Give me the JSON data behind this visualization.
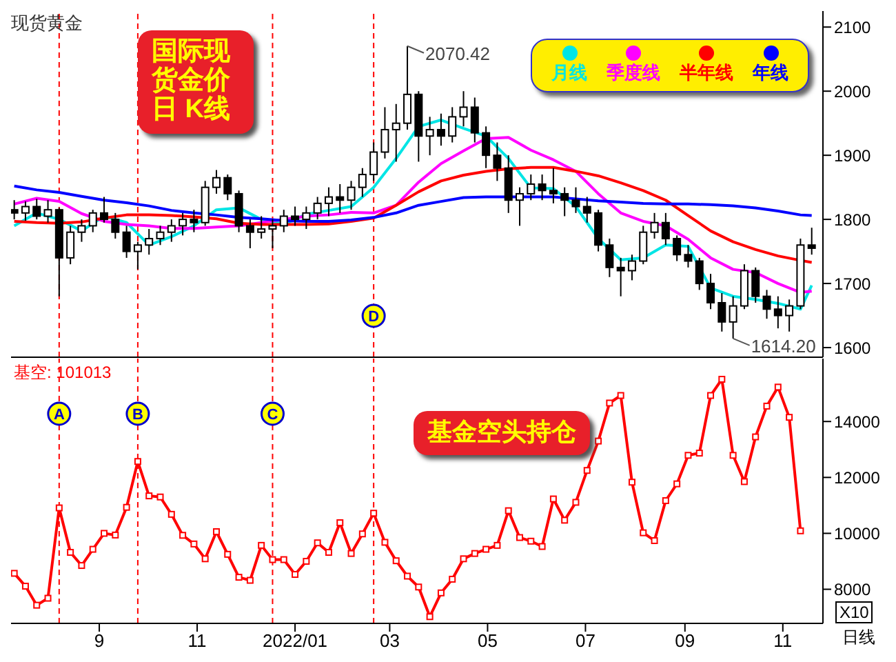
{
  "chart_data": [
    {
      "type": "candlestick",
      "title": "现货黄金",
      "color": "#000000",
      "x": [
        "2021-07-10",
        "2021-07-17",
        "2021-07-24",
        "2021-07-31",
        "2021-08-07",
        "2021-08-14",
        "2021-08-21",
        "2021-08-28",
        "2021-09-04",
        "2021-09-11",
        "2021-09-18",
        "2021-09-25",
        "2021-10-02",
        "2021-10-09",
        "2021-10-16",
        "2021-10-23",
        "2021-10-30",
        "2021-11-06",
        "2021-11-13",
        "2021-11-20",
        "2021-11-27",
        "2021-12-04",
        "2021-12-11",
        "2021-12-18",
        "2021-12-25",
        "2022-01-01",
        "2022-01-08",
        "2022-01-15",
        "2022-01-22",
        "2022-01-29",
        "2022-02-05",
        "2022-02-12",
        "2022-02-19",
        "2022-02-26",
        "2022-03-05",
        "2022-03-12",
        "2022-03-19",
        "2022-03-26",
        "2022-04-02",
        "2022-04-09",
        "2022-04-16",
        "2022-04-23",
        "2022-04-30",
        "2022-05-07",
        "2022-05-14",
        "2022-05-21",
        "2022-05-28",
        "2022-06-04",
        "2022-06-11",
        "2022-06-18",
        "2022-06-25",
        "2022-07-02",
        "2022-07-09",
        "2022-07-16",
        "2022-07-23",
        "2022-07-30",
        "2022-08-06",
        "2022-08-13",
        "2022-08-20",
        "2022-08-27",
        "2022-09-03",
        "2022-09-10",
        "2022-09-17",
        "2022-09-24",
        "2022-10-01",
        "2022-10-08",
        "2022-10-15",
        "2022-10-22",
        "2022-10-29",
        "2022-11-05",
        "2022-11-12",
        "2022-11-19"
      ],
      "ohlc": [
        [
          1815,
          1830,
          1800,
          1810
        ],
        [
          1810,
          1828,
          1798,
          1820
        ],
        [
          1820,
          1832,
          1800,
          1805
        ],
        [
          1805,
          1830,
          1795,
          1815
        ],
        [
          1815,
          1818,
          1680,
          1740
        ],
        [
          1740,
          1790,
          1730,
          1780
        ],
        [
          1780,
          1800,
          1765,
          1790
        ],
        [
          1790,
          1815,
          1780,
          1810
        ],
        [
          1810,
          1835,
          1795,
          1800
        ],
        [
          1800,
          1810,
          1770,
          1780
        ],
        [
          1780,
          1790,
          1740,
          1750
        ],
        [
          1750,
          1765,
          1722,
          1760
        ],
        [
          1760,
          1785,
          1745,
          1770
        ],
        [
          1770,
          1790,
          1760,
          1780
        ],
        [
          1780,
          1800,
          1765,
          1790
        ],
        [
          1790,
          1810,
          1775,
          1800
        ],
        [
          1800,
          1815,
          1780,
          1795
        ],
        [
          1795,
          1860,
          1790,
          1850
        ],
        [
          1850,
          1877,
          1840,
          1865
        ],
        [
          1865,
          1870,
          1830,
          1840
        ],
        [
          1840,
          1845,
          1780,
          1790
        ],
        [
          1790,
          1800,
          1755,
          1780
        ],
        [
          1780,
          1805,
          1770,
          1785
        ],
        [
          1785,
          1800,
          1755,
          1790
        ],
        [
          1790,
          1815,
          1780,
          1805
        ],
        [
          1805,
          1820,
          1790,
          1800
        ],
        [
          1800,
          1820,
          1785,
          1810
        ],
        [
          1810,
          1835,
          1800,
          1825
        ],
        [
          1825,
          1850,
          1805,
          1835
        ],
        [
          1835,
          1855,
          1810,
          1830
        ],
        [
          1830,
          1860,
          1815,
          1850
        ],
        [
          1850,
          1880,
          1835,
          1870
        ],
        [
          1870,
          1920,
          1860,
          1905
        ],
        [
          1905,
          1975,
          1895,
          1940
        ],
        [
          1940,
          1980,
          1890,
          1950
        ],
        [
          1950,
          2070.42,
          1940,
          1995
        ],
        [
          1995,
          2000,
          1890,
          1930
        ],
        [
          1930,
          1960,
          1900,
          1940
        ],
        [
          1940,
          1965,
          1915,
          1930
        ],
        [
          1930,
          1975,
          1920,
          1960
        ],
        [
          1960,
          2000,
          1945,
          1975
        ],
        [
          1975,
          1990,
          1920,
          1935
        ],
        [
          1935,
          1945,
          1880,
          1900
        ],
        [
          1900,
          1920,
          1860,
          1880
        ],
        [
          1880,
          1900,
          1810,
          1830
        ],
        [
          1830,
          1850,
          1790,
          1840
        ],
        [
          1840,
          1870,
          1830,
          1855
        ],
        [
          1855,
          1870,
          1830,
          1845
        ],
        [
          1845,
          1880,
          1825,
          1840
        ],
        [
          1840,
          1850,
          1805,
          1830
        ],
        [
          1830,
          1850,
          1810,
          1820
        ],
        [
          1820,
          1835,
          1795,
          1810
        ],
        [
          1810,
          1815,
          1750,
          1760
        ],
        [
          1760,
          1770,
          1710,
          1725
        ],
        [
          1725,
          1740,
          1680,
          1720
        ],
        [
          1720,
          1745,
          1705,
          1735
        ],
        [
          1735,
          1790,
          1730,
          1780
        ],
        [
          1780,
          1810,
          1770,
          1795
        ],
        [
          1795,
          1810,
          1760,
          1770
        ],
        [
          1770,
          1775,
          1735,
          1745
        ],
        [
          1745,
          1760,
          1725,
          1735
        ],
        [
          1735,
          1740,
          1690,
          1700
        ],
        [
          1700,
          1715,
          1660,
          1670
        ],
        [
          1670,
          1685,
          1625,
          1640
        ],
        [
          1640,
          1680,
          1614.2,
          1665
        ],
        [
          1665,
          1730,
          1660,
          1720
        ],
        [
          1720,
          1725,
          1670,
          1680
        ],
        [
          1680,
          1690,
          1645,
          1660
        ],
        [
          1660,
          1680,
          1630,
          1650
        ],
        [
          1650,
          1675,
          1625,
          1665
        ],
        [
          1665,
          1770,
          1660,
          1760
        ],
        [
          1760,
          1787,
          1745,
          1755
        ]
      ],
      "series": [
        {
          "name": "月线",
          "color": "#00e5e5",
          "type": "line",
          "x": [
            "2021-07-10",
            "2021-07-24",
            "2021-08-07",
            "2021-08-21",
            "2021-09-04",
            "2021-09-18",
            "2021-10-02",
            "2021-10-16",
            "2021-10-30",
            "2021-11-13",
            "2021-11-27",
            "2021-12-11",
            "2021-12-25",
            "2022-01-08",
            "2022-01-22",
            "2022-02-05",
            "2022-02-19",
            "2022-03-05",
            "2022-03-19",
            "2022-04-02",
            "2022-04-16",
            "2022-04-30",
            "2022-05-14",
            "2022-05-28",
            "2022-06-11",
            "2022-06-25",
            "2022-07-09",
            "2022-07-23",
            "2022-08-06",
            "2022-08-20",
            "2022-09-03",
            "2022-09-17",
            "2022-10-01",
            "2022-10-15",
            "2022-10-29",
            "2022-11-12",
            "2022-11-19"
          ],
          "values": [
            1790,
            1810,
            1800,
            1782,
            1805,
            1795,
            1760,
            1773,
            1790,
            1815,
            1818,
            1800,
            1792,
            1808,
            1814,
            1820,
            1850,
            1895,
            1945,
            1955,
            1942,
            1930,
            1895,
            1849,
            1848,
            1820,
            1770,
            1737,
            1740,
            1760,
            1758,
            1693,
            1680,
            1675,
            1669,
            1660,
            1697
          ]
        },
        {
          "name": "季度线",
          "color": "#ff00ff",
          "type": "line",
          "x": [
            "2021-07-10",
            "2021-07-24",
            "2021-08-07",
            "2021-08-21",
            "2021-09-04",
            "2021-09-18",
            "2021-10-02",
            "2021-10-16",
            "2021-10-30",
            "2021-11-13",
            "2021-11-27",
            "2021-12-11",
            "2021-12-25",
            "2022-01-08",
            "2022-01-22",
            "2022-02-05",
            "2022-02-19",
            "2022-03-05",
            "2022-03-19",
            "2022-04-02",
            "2022-04-16",
            "2022-04-30",
            "2022-05-14",
            "2022-05-28",
            "2022-06-11",
            "2022-06-25",
            "2022-07-09",
            "2022-07-23",
            "2022-08-06",
            "2022-08-20",
            "2022-09-03",
            "2022-09-17",
            "2022-10-01",
            "2022-10-15",
            "2022-10-29",
            "2022-11-12",
            "2022-11-19"
          ],
          "values": [
            1824,
            1833,
            1828,
            1809,
            1797,
            1792,
            1790,
            1786,
            1786,
            1788,
            1790,
            1795,
            1800,
            1805,
            1807,
            1811,
            1810,
            1822,
            1858,
            1887,
            1907,
            1926,
            1928,
            1908,
            1893,
            1875,
            1840,
            1810,
            1797,
            1790,
            1769,
            1740,
            1722,
            1717,
            1700,
            1686,
            1688
          ]
        },
        {
          "name": "半年线",
          "color": "#ff0000",
          "type": "line",
          "x": [
            "2021-07-10",
            "2021-07-24",
            "2021-08-07",
            "2021-08-21",
            "2021-09-04",
            "2021-09-18",
            "2021-10-02",
            "2021-10-16",
            "2021-10-30",
            "2021-11-13",
            "2021-11-27",
            "2021-12-11",
            "2021-12-25",
            "2022-01-08",
            "2022-01-22",
            "2022-02-05",
            "2022-02-19",
            "2022-03-05",
            "2022-03-19",
            "2022-04-02",
            "2022-04-16",
            "2022-04-30",
            "2022-05-14",
            "2022-05-28",
            "2022-06-11",
            "2022-06-25",
            "2022-07-09",
            "2022-07-23",
            "2022-08-06",
            "2022-08-20",
            "2022-09-03",
            "2022-09-17",
            "2022-10-01",
            "2022-10-15",
            "2022-10-29",
            "2022-11-12",
            "2022-11-19"
          ],
          "values": [
            1797,
            1795,
            1794,
            1796,
            1802,
            1807,
            1807,
            1806,
            1804,
            1801,
            1794,
            1792,
            1792,
            1792,
            1793,
            1797,
            1802,
            1822,
            1843,
            1860,
            1869,
            1875,
            1879,
            1881,
            1881,
            1875,
            1868,
            1857,
            1845,
            1830,
            1806,
            1782,
            1765,
            1753,
            1743,
            1736,
            1733
          ]
        },
        {
          "name": "年线",
          "color": "#0000ff",
          "type": "line",
          "x": [
            "2021-07-10",
            "2021-07-24",
            "2021-08-07",
            "2021-08-21",
            "2021-09-04",
            "2021-09-18",
            "2021-10-02",
            "2021-10-16",
            "2021-10-30",
            "2021-11-13",
            "2021-11-27",
            "2021-12-11",
            "2021-12-25",
            "2022-01-08",
            "2022-01-22",
            "2022-02-05",
            "2022-02-19",
            "2022-03-05",
            "2022-03-19",
            "2022-04-02",
            "2022-04-16",
            "2022-04-30",
            "2022-05-14",
            "2022-05-28",
            "2022-06-11",
            "2022-06-25",
            "2022-07-09",
            "2022-07-23",
            "2022-08-06",
            "2022-08-20",
            "2022-09-03",
            "2022-09-17",
            "2022-10-01",
            "2022-10-15",
            "2022-10-29",
            "2022-11-12",
            "2022-11-19"
          ],
          "values": [
            1852,
            1846,
            1842,
            1836,
            1830,
            1826,
            1821,
            1814,
            1810,
            1807,
            1803,
            1801,
            1798,
            1797,
            1797,
            1799,
            1803,
            1810,
            1822,
            1828,
            1834,
            1835,
            1835,
            1835,
            1835,
            1832,
            1829,
            1827,
            1825,
            1824,
            1824,
            1823,
            1821,
            1818,
            1813,
            1807,
            1806
          ]
        }
      ],
      "xlim": [
        "2021-07-08",
        "2022-11-26"
      ],
      "ylim": [
        1585,
        2125
      ],
      "yticks": [
        1600,
        1700,
        1800,
        1900,
        2000,
        2100
      ],
      "tick_labels": "y",
      "legend": "top right",
      "ref_lines": [
        {
          "axis": "x",
          "value": "2021-08-07",
          "label": null,
          "color": "#ff0000",
          "line_style": "dashed"
        },
        {
          "axis": "x",
          "value": "2021-09-25",
          "label": null,
          "color": "#ff0000",
          "line_style": "dashed"
        },
        {
          "axis": "x",
          "value": "2021-12-18",
          "label": null,
          "color": "#ff0000",
          "line_style": "dashed"
        },
        {
          "axis": "x",
          "value": "2022-02-19",
          "label": "D",
          "color": "#ff0000",
          "line_style": "dashed"
        }
      ],
      "annotations": [
        "国际现货金价日 K线",
        {
          "text": "2070.42",
          "x": "2022-03-12",
          "y": 2070.42
        },
        {
          "text": "1614.20",
          "x": "2022-10-01",
          "y": 1614.2
        }
      ]
    },
    {
      "type": "line",
      "color": "#ff0000",
      "marker": "square",
      "x": [
        "2021-07-10",
        "2021-07-17",
        "2021-07-24",
        "2021-07-31",
        "2021-08-07",
        "2021-08-14",
        "2021-08-21",
        "2021-08-28",
        "2021-09-04",
        "2021-09-11",
        "2021-09-18",
        "2021-09-25",
        "2021-10-02",
        "2021-10-09",
        "2021-10-16",
        "2021-10-23",
        "2021-10-30",
        "2021-11-06",
        "2021-11-13",
        "2021-11-20",
        "2021-11-27",
        "2021-12-04",
        "2021-12-11",
        "2021-12-18",
        "2021-12-25",
        "2022-01-01",
        "2022-01-08",
        "2022-01-15",
        "2022-01-22",
        "2022-01-29",
        "2022-02-05",
        "2022-02-12",
        "2022-02-19",
        "2022-02-26",
        "2022-03-05",
        "2022-03-12",
        "2022-03-19",
        "2022-03-26",
        "2022-04-02",
        "2022-04-09",
        "2022-04-16",
        "2022-04-23",
        "2022-04-30",
        "2022-05-07",
        "2022-05-14",
        "2022-05-21",
        "2022-05-28",
        "2022-06-04",
        "2022-06-11",
        "2022-06-18",
        "2022-06-25",
        "2022-07-02",
        "2022-07-09",
        "2022-07-16",
        "2022-07-23",
        "2022-07-30",
        "2022-08-06",
        "2022-08-13",
        "2022-08-20",
        "2022-08-27",
        "2022-09-03",
        "2022-09-10",
        "2022-09-17",
        "2022-09-24",
        "2022-10-01",
        "2022-10-08",
        "2022-10-15",
        "2022-10-22",
        "2022-10-29",
        "2022-11-05",
        "2022-11-12"
      ],
      "values": [
        8570,
        8110,
        7430,
        7680,
        10910,
        9320,
        8850,
        9430,
        10000,
        9940,
        10930,
        12570,
        11340,
        11300,
        10680,
        9930,
        9620,
        9090,
        10060,
        9250,
        8430,
        8320,
        9570,
        9060,
        9060,
        8530,
        9000,
        9660,
        9320,
        10380,
        9280,
        9980,
        10720,
        9680,
        9020,
        8470,
        8080,
        7020,
        7870,
        8360,
        9090,
        9280,
        9430,
        9570,
        10810,
        9850,
        9720,
        9530,
        11230,
        10470,
        11110,
        12250,
        13300,
        14660,
        14930,
        11830,
        10020,
        9740,
        11170,
        11770,
        12790,
        12870,
        14930,
        15510,
        12790,
        11850,
        13450,
        14550,
        15230,
        14150,
        10090
      ],
      "xlim": [
        "2021-07-08",
        "2022-11-26"
      ],
      "xticks": [
        {
          "value": "2021-09-01",
          "label": "9"
        },
        {
          "value": "2021-11-01",
          "label": "11"
        },
        {
          "value": "2022-01-01",
          "label": "2022/01"
        },
        {
          "value": "2022-03-01",
          "label": "03"
        },
        {
          "value": "2022-05-01",
          "label": "05"
        },
        {
          "value": "2022-07-01",
          "label": "07"
        },
        {
          "value": "2022-09-01",
          "label": "09"
        },
        {
          "value": "2022-11-01",
          "label": "11"
        }
      ],
      "ylim": [
        6780,
        16250
      ],
      "yticks": [
        8000,
        10000,
        12000,
        14000
      ],
      "ref_lines": [
        {
          "axis": "x",
          "value": "2021-08-07",
          "label": "A",
          "color": "#ff0000",
          "line_style": "dashed"
        },
        {
          "axis": "x",
          "value": "2021-09-25",
          "label": "B",
          "color": "#ff0000",
          "line_style": "dashed"
        },
        {
          "axis": "x",
          "value": "2021-12-18",
          "label": "C",
          "color": "#ff0000",
          "line_style": "dashed"
        },
        {
          "axis": "x",
          "value": "2022-02-19",
          "label": null,
          "color": "#ff0000",
          "line_style": "dashed"
        }
      ],
      "annotations": [
        "基空: 101013",
        "基金空头持仓",
        "X10",
        "日线"
      ]
    }
  ]
}
